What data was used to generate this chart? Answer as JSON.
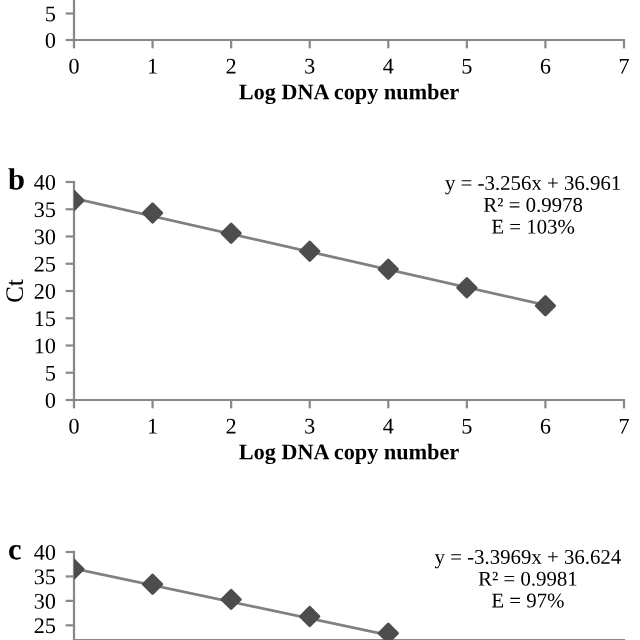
{
  "chart_data": [
    {
      "type": "scatter",
      "xlabel": "Log DNA copy number",
      "xlim": [
        0,
        7
      ],
      "xticks": [
        0,
        1,
        2,
        3,
        4,
        5,
        6,
        7
      ],
      "ylim": [
        0,
        8
      ],
      "yticks": [
        0,
        5
      ],
      "grid": false,
      "legend": false
    },
    {
      "type": "scatter",
      "title": "b",
      "xlabel": "Log DNA copy number",
      "ylabel": "Ct",
      "xlim": [
        0,
        7
      ],
      "xticks": [
        0,
        1,
        2,
        3,
        4,
        5,
        6,
        7
      ],
      "ylim": [
        0,
        40
      ],
      "yticks": [
        0,
        5,
        10,
        15,
        20,
        25,
        30,
        35,
        40
      ],
      "grid": false,
      "legend": false,
      "marker": "diamond",
      "annotations": [
        "y = -3.256x + 36.961\nR² = 0.9978\nE = 103%"
      ],
      "series": [
        {
          "type": "line",
          "color": "#808080",
          "x": [
            0,
            6
          ],
          "values": [
            37.0,
            17.4
          ],
          "marker": "none"
        },
        {
          "color": "#4d4d4d",
          "x": [
            0,
            1,
            2,
            3,
            4,
            5,
            6
          ],
          "values": [
            36.6,
            34.3,
            30.6,
            27.3,
            24.0,
            20.6,
            17.3
          ]
        }
      ]
    },
    {
      "type": "scatter",
      "title": "c",
      "xlim": [
        0,
        7
      ],
      "ylim": [
        22,
        40
      ],
      "yticks": [
        25,
        30,
        35,
        40
      ],
      "tick_labels": "y",
      "grid": false,
      "legend": false,
      "marker": "diamond",
      "annotations": [
        "y = -3.3969x + 36.624\nR² = 0.9981\nE = 97%"
      ],
      "series": [
        {
          "type": "line",
          "color": "#808080",
          "x": [
            0,
            4
          ],
          "values": [
            36.6,
            23.0
          ],
          "marker": "none"
        },
        {
          "color": "#4d4d4d",
          "x": [
            0,
            1,
            2,
            3,
            4
          ],
          "values": [
            36.5,
            33.4,
            30.3,
            26.8,
            23.4
          ]
        }
      ]
    }
  ]
}
